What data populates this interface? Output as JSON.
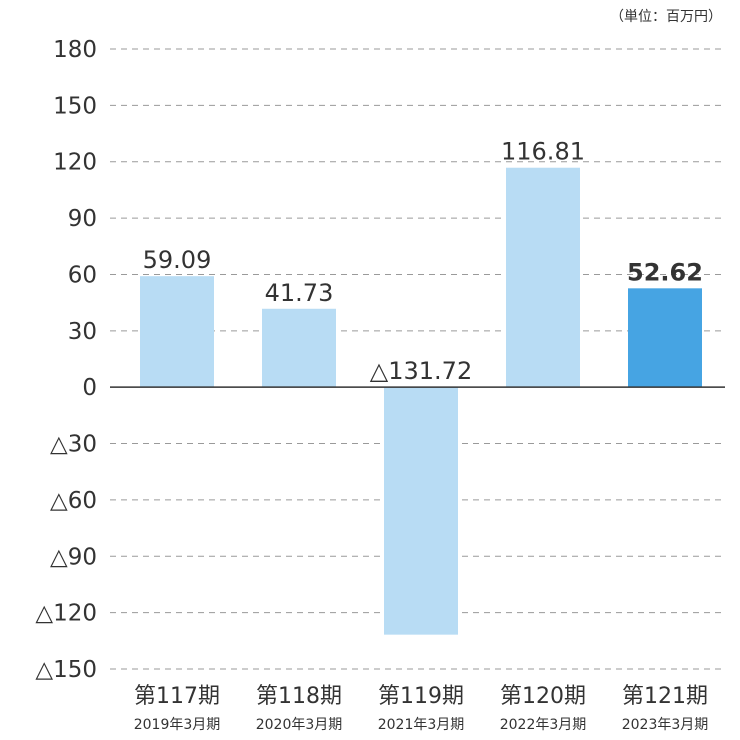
{
  "unit_note": "（単位：百万円）",
  "colors": {
    "normal": "#b8dcf4",
    "highlight": "#46a4e3",
    "grid": "#9a9a9a",
    "zero": "#333333"
  },
  "chart_data": {
    "type": "bar",
    "categories": [
      "第117期",
      "第118期",
      "第119期",
      "第120期",
      "第121期"
    ],
    "sublabels": [
      "2019年3月期",
      "2020年3月期",
      "2021年3月期",
      "2022年3月期",
      "2023年3月期"
    ],
    "values": [
      59.09,
      41.73,
      -131.72,
      116.81,
      52.62
    ],
    "data_labels": [
      "59.09",
      "41.73",
      "△131.72",
      "116.81",
      "52.62"
    ],
    "highlight": [
      false,
      false,
      false,
      false,
      true
    ],
    "ylim": [
      -150,
      180
    ],
    "yticks": [
      180,
      150,
      120,
      90,
      60,
      30,
      0,
      -30,
      -60,
      -90,
      -120,
      -150
    ],
    "ytick_labels": [
      "180",
      "150",
      "120",
      "90",
      "60",
      "30",
      "0",
      "△30",
      "△60",
      "△90",
      "△120",
      "△150"
    ],
    "grid": true,
    "title": "",
    "xlabel": "",
    "ylabel": ""
  }
}
